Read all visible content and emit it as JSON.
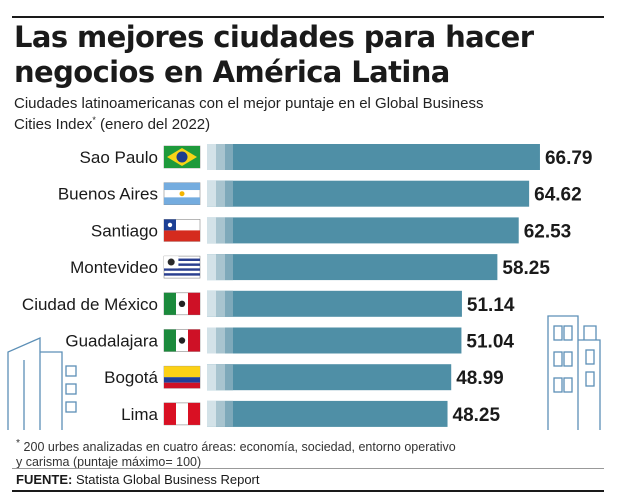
{
  "title_line1": "Las mejores ciudades para hacer",
  "title_line2": "negocios en América Latina",
  "subtitle_line1": "Ciudades latinoamericanas con el mejor puntaje en el Global Business",
  "subtitle_line2_a": "Cities Index",
  "subtitle_line2_mark": "*",
  "subtitle_line2_b": " (enero del 2022)",
  "footnote_mark": "*",
  "footnote_line1": " 200 urbes analizadas en cuatro áreas: economía, sociedad, entorno operativo",
  "footnote_line2": "y carisma (puntaje máximo= 100)",
  "source_label": "FUENTE:",
  "source_text": " Statista Global Business Report",
  "colors": {
    "bar": "#4f8fa6",
    "bar_light": "#a8c4cf",
    "bar_lighter": "#d3e2e8",
    "building_outline": "#5c8fb6"
  },
  "chart_data": {
    "type": "bar",
    "orientation": "horizontal",
    "categories": [
      "Sao Paulo",
      "Buenos Aires",
      "Santiago",
      "Montevideo",
      "Ciudad de México",
      "Guadalajara",
      "Bogotá",
      "Lima"
    ],
    "flags": [
      "brazil-flag",
      "argentina-flag",
      "chile-flag",
      "uruguay-flag",
      "mexico-flag",
      "mexico-flag",
      "colombia-flag",
      "peru-flag"
    ],
    "series": [
      {
        "values": [
          66.79,
          64.62,
          62.53,
          58.25,
          51.14,
          51.04,
          48.99,
          48.25
        ]
      }
    ],
    "value_labels": [
      "66.79",
      "64.62",
      "62.53",
      "58.25",
      "51.14",
      "51.04",
      "48.99",
      "48.25"
    ],
    "xlim": [
      0,
      70
    ],
    "grid": false,
    "legend": "none"
  }
}
